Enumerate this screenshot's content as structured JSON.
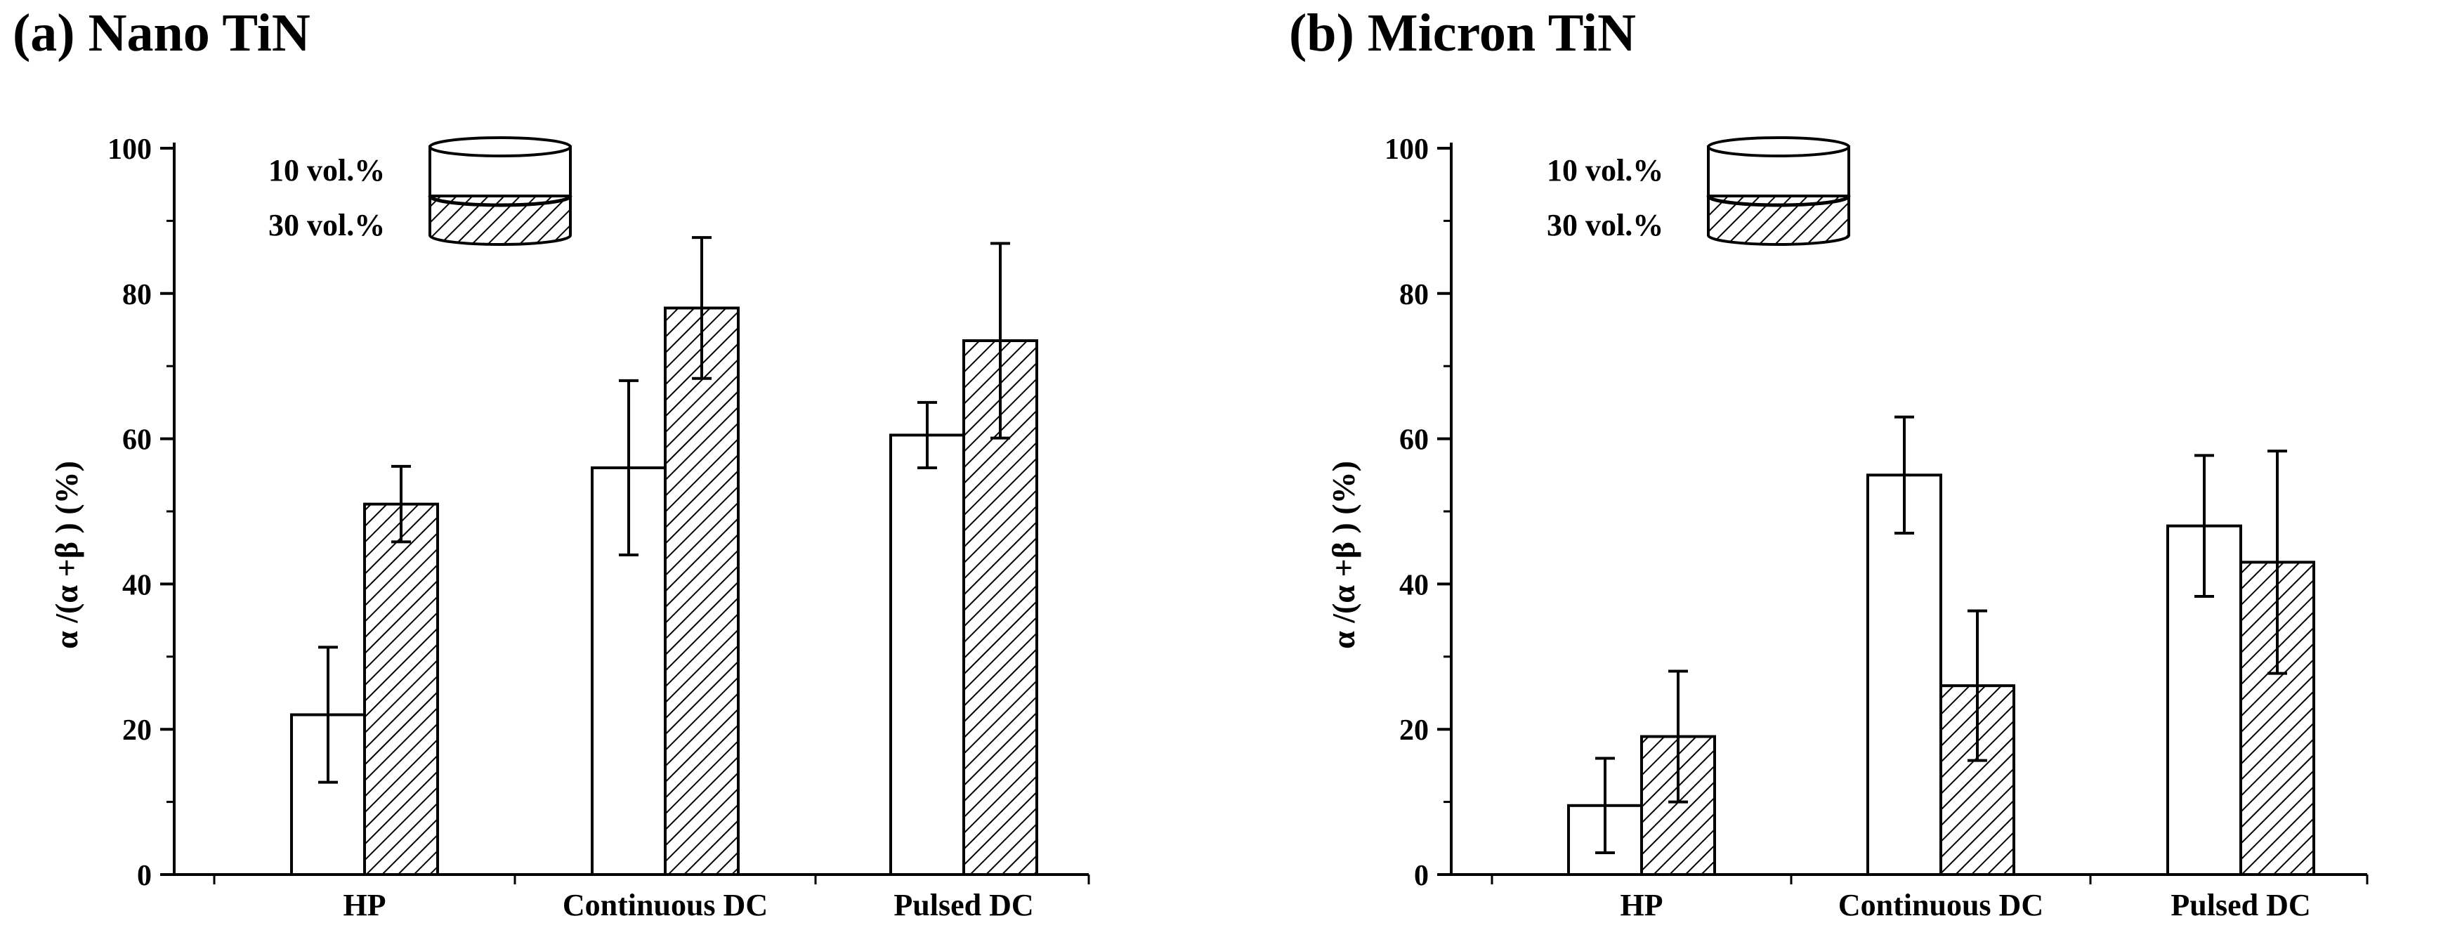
{
  "colors": {
    "ink": "#000000",
    "bar_fill": "#ffffff",
    "background": "#ffffff"
  },
  "chart_data": [
    {
      "type": "bar",
      "title": "(a) Nano TiN",
      "xlabel": "",
      "ylabel": "α /(α +β ) (%)",
      "ylim": [
        0,
        100
      ],
      "yticks": [
        0,
        20,
        40,
        60,
        80,
        100
      ],
      "ytick_labels": [
        "0",
        "20",
        "40",
        "60",
        "80",
        "100"
      ],
      "categories": [
        "HP",
        "Continuous DC",
        "Pulsed DC"
      ],
      "series": [
        {
          "name": "10 vol.%",
          "pattern": "none",
          "values": [
            22,
            56,
            60.5
          ],
          "error": [
            9.3,
            12,
            4.5
          ]
        },
        {
          "name": "30 vol.%",
          "pattern": "hatched",
          "values": [
            51,
            78,
            73.5
          ],
          "error": [
            5.2,
            9.7,
            13.4
          ]
        }
      ],
      "legend": {
        "placement": "top-left",
        "entries": [
          "10 vol.%",
          "30 vol.%"
        ]
      },
      "grid": false
    },
    {
      "type": "bar",
      "title": "(b) Micron TiN",
      "xlabel": "",
      "ylabel": "α /(α +β ) (%)",
      "ylim": [
        0,
        100
      ],
      "yticks": [
        0,
        20,
        40,
        60,
        80,
        100
      ],
      "ytick_labels": [
        "0",
        "20",
        "40",
        "60",
        "80",
        "100"
      ],
      "categories": [
        "HP",
        "Continuous DC",
        "Pulsed DC"
      ],
      "series": [
        {
          "name": "10 vol.%",
          "pattern": "none",
          "values": [
            9.5,
            55,
            48
          ],
          "error": [
            6.5,
            8,
            9.7
          ]
        },
        {
          "name": "30 vol.%",
          "pattern": "hatched",
          "values": [
            19,
            26,
            43
          ],
          "error": [
            9,
            10.3,
            15.3
          ]
        }
      ],
      "legend": {
        "placement": "top-left",
        "entries": [
          "10 vol.%",
          "30 vol.%"
        ]
      },
      "grid": false
    }
  ]
}
